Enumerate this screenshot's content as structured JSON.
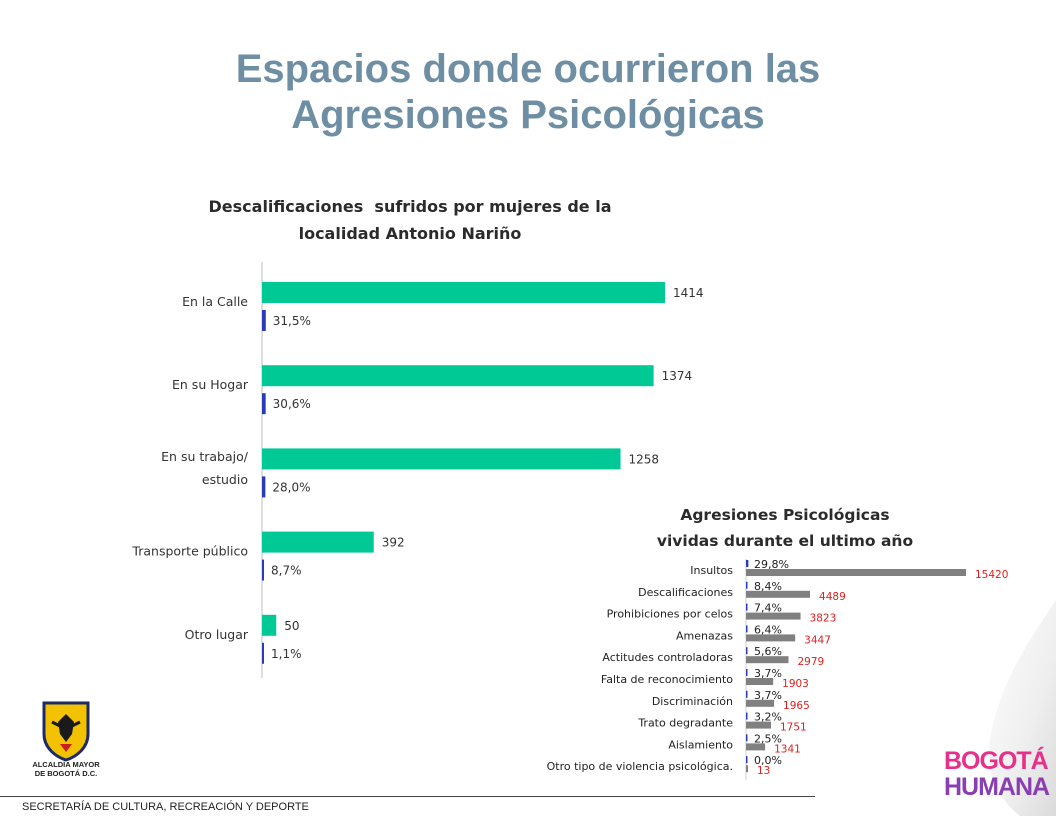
{
  "title_lines": [
    "Espacios donde ocurrieron las",
    "Agresiones Psicológicas"
  ],
  "colors": {
    "title": "#6e8ea4",
    "teal_bar": "#00c996",
    "blue_bar": "#2b3bb8",
    "gray_bar": "#808080",
    "red_label": "#e02020"
  },
  "chart_data": [
    {
      "type": "bar",
      "orientation": "horizontal",
      "title_lines": [
        "Descalificaciones  sufridos por mujeres de la",
        "localidad Antonio Nariño"
      ],
      "categories": [
        [
          "En la Calle"
        ],
        [
          "En su Hogar"
        ],
        [
          "En su trabajo/",
          "estudio"
        ],
        [
          "Transporte público"
        ],
        [
          "Otro lugar"
        ]
      ],
      "series": [
        {
          "values": [
            1414,
            1374,
            1258,
            392,
            50
          ],
          "labels": [
            "1414",
            "1374",
            "1258",
            "392",
            "50"
          ],
          "color": "#00c996"
        },
        {
          "values": [
            31.5,
            30.6,
            28.0,
            8.7,
            1.1
          ],
          "labels": [
            "31,5%",
            "30,6%",
            "28,0%",
            "8,7%",
            "1,1%"
          ],
          "color": "#2b3bb8"
        }
      ],
      "grid": false,
      "legend": "none"
    },
    {
      "type": "bar",
      "orientation": "horizontal",
      "title_lines": [
        "Agresiones Psicológicas",
        "vividas durante el ultimo año"
      ],
      "categories": [
        "Insultos",
        "Descalificaciones",
        "Prohibiciones por celos",
        "Amenazas",
        "Actitudes controladoras",
        "Falta de reconocimiento",
        "Discriminación",
        "Trato degradante",
        "Aislamiento",
        "Otro tipo de violencia psicológica."
      ],
      "series": [
        {
          "values": [
            29.8,
            8.4,
            7.4,
            6.4,
            5.6,
            3.7,
            3.7,
            3.2,
            2.5,
            0.0
          ],
          "labels": [
            "29,8%",
            "8,4%",
            "7,4%",
            "6,4%",
            "5,6%",
            "3,7%",
            "3,7%",
            "3,2%",
            "2,5%",
            "0,0%"
          ],
          "color": "#2b3bb8"
        },
        {
          "values": [
            15420,
            4489,
            3823,
            3447,
            2979,
            1903,
            1965,
            1751,
            1341,
            13
          ],
          "labels": [
            "15420",
            "4489",
            "3823",
            "3447",
            "2979",
            "1903",
            "1965",
            "1751",
            "1341",
            "13"
          ],
          "color": "#808080",
          "label_color": "#e02020"
        }
      ],
      "grid": false,
      "legend": "none"
    }
  ],
  "crest": {
    "label_lines": [
      "ALCALDÍA MAYOR",
      "DE BOGOTÁ D.C."
    ]
  },
  "footer": {
    "text": "SECRETARÍA DE CULTURA, RECREACIÓN Y DEPORTE"
  },
  "logo": {
    "line1": "BOGOTÁ",
    "line2": "HUMANA"
  }
}
